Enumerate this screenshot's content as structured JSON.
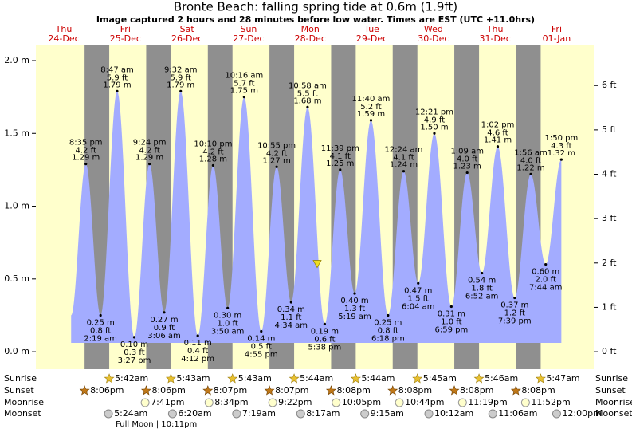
{
  "chart_data": {
    "type": "tide",
    "title": "Bronte Beach: falling  spring tide at 0.6m (1.9ft)",
    "subtitle": "Image captured 2 hours and 28 minutes before low water. Times are EST (UTC +11.0hrs)",
    "current_level": 0.6,
    "ylim": [
      -0.12,
      2.104
    ],
    "yticks": [
      {
        "value": 0,
        "label": "0.0 m"
      },
      {
        "value": 0.5,
        "label": "0.5 m"
      },
      {
        "value": 1,
        "label": "1.0 m"
      },
      {
        "value": 1.5,
        "label": "1.5 m"
      },
      {
        "value": 2,
        "label": "2.0 m"
      }
    ],
    "y2lim": [
      -0.394,
      6.903
    ],
    "y2ticks": [
      {
        "value": 0,
        "label": "0 ft"
      },
      {
        "value": 1,
        "label": "1 ft"
      },
      {
        "value": 2,
        "label": "2 ft"
      },
      {
        "value": 3,
        "label": "3 ft"
      },
      {
        "value": 4,
        "label": "4 ft"
      },
      {
        "value": 5,
        "label": "5 ft"
      },
      {
        "value": 6,
        "label": "6 ft"
      }
    ],
    "row_labels": {
      "sunrise": "Sunrise",
      "sunset": "Sunset",
      "moonrise": "Moonrise",
      "moonset": "Moonset"
    },
    "days": [
      {
        "weekday": "Thu",
        "date": "24-Dec",
        "sunset": "8:06pm",
        "tides": [
          {
            "time": "8:35 pm",
            "ft_label": "4.2 ft",
            "value": 1.29,
            "value_label": "1.29 m"
          }
        ]
      },
      {
        "weekday": "Fri",
        "date": "25-Dec",
        "sunrise": "5:42am",
        "sunset": "8:06pm",
        "moonrise": "7:41pm",
        "moonset": "5:24am",
        "moon_phase": "Full Moon | 10:11pm",
        "tides": [
          {
            "time": "2:19 am",
            "ft_label": "0.8 ft",
            "value": 0.25,
            "value_label": "0.25 m"
          },
          {
            "time": "8:47 am",
            "ft_label": "5.9 ft",
            "value": 1.79,
            "value_label": "1.79 m"
          },
          {
            "time": "3:27 pm",
            "ft_label": "0.3 ft",
            "value": 0.1,
            "value_label": "0.10 m"
          },
          {
            "time": "9:24 pm",
            "ft_label": "4.2 ft",
            "value": 1.29,
            "value_label": "1.29 m"
          }
        ]
      },
      {
        "weekday": "Sat",
        "date": "26-Dec",
        "sunrise": "5:43am",
        "sunset": "8:07pm",
        "moonrise": "8:34pm",
        "moonset": "6:20am",
        "tides": [
          {
            "time": "3:06 am",
            "ft_label": "0.9 ft",
            "value": 0.27,
            "value_label": "0.27 m"
          },
          {
            "time": "9:32 am",
            "ft_label": "5.9 ft",
            "value": 1.79,
            "value_label": "1.79 m"
          },
          {
            "time": "4:12 pm",
            "ft_label": "0.4 ft",
            "value": 0.11,
            "value_label": "0.11 m"
          },
          {
            "time": "10:10 pm",
            "ft_label": "4.2 ft",
            "value": 1.28,
            "value_label": "1.28 m"
          }
        ]
      },
      {
        "weekday": "Sun",
        "date": "27-Dec",
        "sunrise": "5:43am",
        "sunset": "8:07pm",
        "moonrise": "9:22pm",
        "moonset": "7:19am",
        "tides": [
          {
            "time": "3:50 am",
            "ft_label": "1.0 ft",
            "value": 0.3,
            "value_label": "0.30 m"
          },
          {
            "time": "10:16 am",
            "ft_label": "5.7 ft",
            "value": 1.75,
            "value_label": "1.75 m"
          },
          {
            "time": "4:55 pm",
            "ft_label": "0.5 ft",
            "value": 0.14,
            "value_label": "0.14 m"
          },
          {
            "time": "10:55 pm",
            "ft_label": "4.2 ft",
            "value": 1.27,
            "value_label": "1.27 m"
          }
        ]
      },
      {
        "weekday": "Mon",
        "date": "28-Dec",
        "sunrise": "5:44am",
        "sunset": "8:08pm",
        "moonrise": "10:05pm",
        "moonset": "8:17am",
        "tides": [
          {
            "time": "4:34 am",
            "ft_label": "1.1 ft",
            "value": 0.34,
            "value_label": "0.34 m"
          },
          {
            "time": "10:58 am",
            "ft_label": "5.5 ft",
            "value": 1.68,
            "value_label": "1.68 m"
          },
          {
            "time": "5:38 pm",
            "ft_label": "0.6 ft",
            "value": 0.19,
            "value_label": "0.19 m"
          },
          {
            "time": "11:39 pm",
            "ft_label": "4.1 ft",
            "value": 1.25,
            "value_label": "1.25 m"
          }
        ]
      },
      {
        "weekday": "Tue",
        "date": "29-Dec",
        "sunrise": "5:44am",
        "sunset": "8:08pm",
        "moonrise": "10:44pm",
        "moonset": "9:15am",
        "tides": [
          {
            "time": "5:19 am",
            "ft_label": "1.3 ft",
            "value": 0.4,
            "value_label": "0.40 m"
          },
          {
            "time": "11:40 am",
            "ft_label": "5.2 ft",
            "value": 1.59,
            "value_label": "1.59 m"
          },
          {
            "time": "6:18 pm",
            "ft_label": "0.8 ft",
            "value": 0.25,
            "value_label": "0.25 m"
          }
        ]
      },
      {
        "weekday": "Wed",
        "date": "30-Dec",
        "sunrise": "5:45am",
        "sunset": "8:08pm",
        "moonrise": "11:19pm",
        "moonset": "10:12am",
        "tides": [
          {
            "time": "12:24 am",
            "ft_label": "4.1 ft",
            "value": 1.24,
            "value_label": "1.24 m"
          },
          {
            "time": "6:04 am",
            "ft_label": "1.5 ft",
            "value": 0.47,
            "value_label": "0.47 m"
          },
          {
            "time": "12:21 pm",
            "ft_label": "4.9 ft",
            "value": 1.5,
            "value_label": "1.50 m"
          },
          {
            "time": "6:59 pm",
            "ft_label": "1.0 ft",
            "value": 0.31,
            "value_label": "0.31 m"
          }
        ]
      },
      {
        "weekday": "Thu",
        "date": "31-Dec",
        "sunrise": "5:46am",
        "sunset": "8:08pm",
        "moonrise": "11:52pm",
        "moonset": "11:06am",
        "tides": [
          {
            "time": "1:09 am",
            "ft_label": "4.0 ft",
            "value": 1.23,
            "value_label": "1.23 m"
          },
          {
            "time": "6:52 am",
            "ft_label": "1.8 ft",
            "value": 0.54,
            "value_label": "0.54 m"
          },
          {
            "time": "1:02 pm",
            "ft_label": "4.6 ft",
            "value": 1.41,
            "value_label": "1.41 m"
          },
          {
            "time": "7:39 pm",
            "ft_label": "1.2 ft",
            "value": 0.37,
            "value_label": "0.37 m"
          }
        ]
      },
      {
        "weekday": "Fri",
        "date": "01-Jan",
        "sunrise": "5:47am",
        "moonset": "12:00pm",
        "tides": [
          {
            "time": "1:56 am",
            "ft_label": "4.0 ft",
            "value": 1.22,
            "value_label": "1.22 m"
          },
          {
            "time": "7:44 am",
            "ft_label": "2.0 ft",
            "value": 0.6,
            "value_label": "0.60 m"
          },
          {
            "time": "1:50 pm",
            "ft_label": "4.3 ft",
            "value": 1.32,
            "value_label": "1.32 m"
          }
        ]
      }
    ]
  }
}
